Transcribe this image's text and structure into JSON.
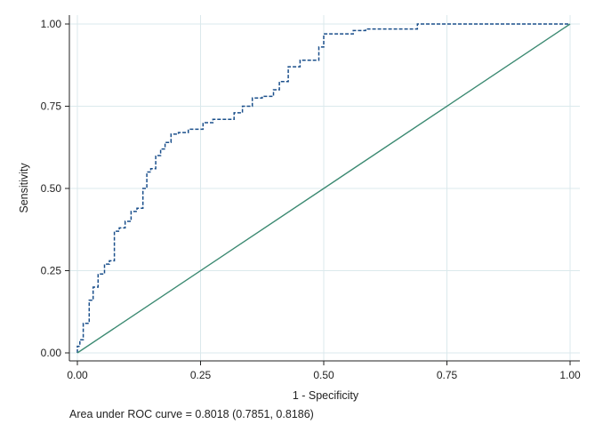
{
  "chart_data": {
    "type": "line",
    "xlabel": "1 - Specificity",
    "ylabel": "Sensitivity",
    "xlim": [
      0,
      1
    ],
    "ylim": [
      0,
      1
    ],
    "x_ticks": [
      0,
      0.25,
      0.5,
      0.75,
      1
    ],
    "y_ticks": [
      0,
      0.25,
      0.5,
      0.75,
      1
    ],
    "x_tick_labels": [
      "0.00",
      "0.25",
      "0.50",
      "0.75",
      "1.00"
    ],
    "y_tick_labels": [
      "0.00",
      "0.25",
      "0.50",
      "0.75",
      "1.00"
    ],
    "grid": true,
    "note": "Area under ROC curve = 0.8018 (0.7851, 0.8186)",
    "colors": {
      "roc": "#1a4f8b",
      "reference": "#3c8a72",
      "grid": "#dbe9ec",
      "axis": "#222222"
    },
    "series": [
      {
        "style": "dashed",
        "x": [
          0,
          0,
          0.005,
          0.005,
          0.012,
          0.012,
          0.024,
          0.024,
          0.032,
          0.032,
          0.042,
          0.042,
          0.055,
          0.055,
          0.065,
          0.065,
          0.075,
          0.075,
          0.085,
          0.085,
          0.097,
          0.097,
          0.109,
          0.109,
          0.121,
          0.121,
          0.133,
          0.133,
          0.141,
          0.141,
          0.149,
          0.149,
          0.159,
          0.159,
          0.169,
          0.169,
          0.178,
          0.178,
          0.19,
          0.19,
          0.205,
          0.205,
          0.225,
          0.225,
          0.255,
          0.255,
          0.275,
          0.275,
          0.318,
          0.318,
          0.335,
          0.335,
          0.355,
          0.355,
          0.375,
          0.375,
          0.398,
          0.398,
          0.41,
          0.41,
          0.428,
          0.428,
          0.452,
          0.452,
          0.49,
          0.49,
          0.5,
          0.5,
          0.56,
          0.56,
          0.585,
          0.585,
          0.69,
          0.69,
          1
        ],
        "y": [
          0,
          0.02,
          0.02,
          0.04,
          0.04,
          0.09,
          0.09,
          0.16,
          0.16,
          0.2,
          0.2,
          0.24,
          0.24,
          0.27,
          0.27,
          0.28,
          0.28,
          0.37,
          0.37,
          0.38,
          0.38,
          0.4,
          0.4,
          0.43,
          0.43,
          0.44,
          0.44,
          0.5,
          0.5,
          0.55,
          0.55,
          0.56,
          0.56,
          0.6,
          0.6,
          0.62,
          0.62,
          0.64,
          0.64,
          0.665,
          0.665,
          0.67,
          0.67,
          0.68,
          0.68,
          0.7,
          0.7,
          0.71,
          0.71,
          0.73,
          0.73,
          0.75,
          0.75,
          0.775,
          0.775,
          0.78,
          0.78,
          0.8,
          0.8,
          0.825,
          0.825,
          0.87,
          0.87,
          0.89,
          0.89,
          0.93,
          0.93,
          0.97,
          0.97,
          0.98,
          0.98,
          0.985,
          0.985,
          1,
          1
        ]
      },
      {
        "style": "solid",
        "x": [
          0,
          1
        ],
        "y": [
          0,
          1
        ]
      }
    ]
  }
}
